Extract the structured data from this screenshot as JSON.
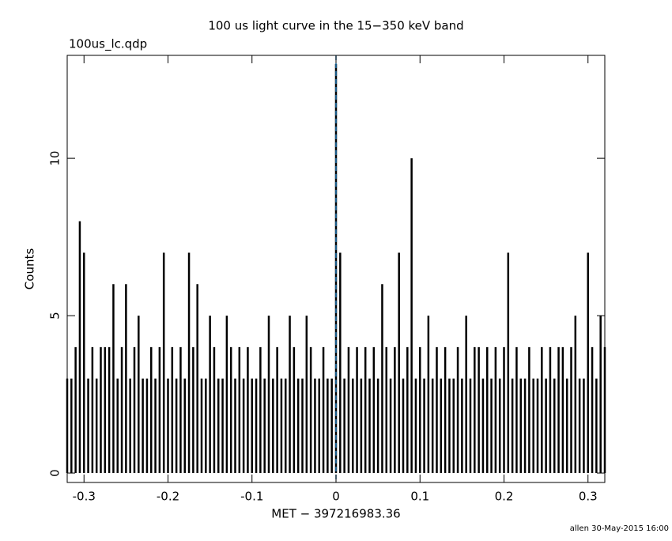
{
  "chart_data": {
    "type": "needle",
    "title": "100 us light curve in the 15−350 keV band",
    "subtitle": "100us_lc.qdp",
    "x_label": "MET − 397216983.36",
    "y_label": "Counts",
    "footer": "allen 30-May-2015 16:00",
    "color": "#000000",
    "vline": 0,
    "vline_color": "#1f77b4",
    "x": [
      -0.32,
      -0.315,
      -0.31,
      -0.305,
      -0.3,
      -0.295,
      -0.29,
      -0.285,
      -0.28,
      -0.275,
      -0.27,
      -0.265,
      -0.26,
      -0.255,
      -0.25,
      -0.245,
      -0.24,
      -0.235,
      -0.23,
      -0.225,
      -0.22,
      -0.215,
      -0.21,
      -0.205,
      -0.2,
      -0.195,
      -0.19,
      -0.185,
      -0.18,
      -0.175,
      -0.17,
      -0.165,
      -0.16,
      -0.155,
      -0.15,
      -0.145,
      -0.14,
      -0.135,
      -0.13,
      -0.125,
      -0.12,
      -0.115,
      -0.11,
      -0.105,
      -0.1,
      -0.095,
      -0.09,
      -0.085,
      -0.08,
      -0.075,
      -0.07,
      -0.065,
      -0.06,
      -0.055,
      -0.05,
      -0.045,
      -0.04,
      -0.035,
      -0.03,
      -0.025,
      -0.02,
      -0.015,
      -0.01,
      -0.005,
      0,
      0.005,
      0.01,
      0.015,
      0.02,
      0.025,
      0.03,
      0.035,
      0.04,
      0.045,
      0.05,
      0.055,
      0.06,
      0.065,
      0.07,
      0.075,
      0.08,
      0.085,
      0.09,
      0.095,
      0.1,
      0.105,
      0.11,
      0.115,
      0.12,
      0.125,
      0.13,
      0.135,
      0.14,
      0.145,
      0.15,
      0.155,
      0.16,
      0.165,
      0.17,
      0.175,
      0.18,
      0.185,
      0.19,
      0.195,
      0.2,
      0.205,
      0.21,
      0.215,
      0.22,
      0.225,
      0.23,
      0.235,
      0.24,
      0.245,
      0.25,
      0.255,
      0.26,
      0.265,
      0.27,
      0.275,
      0.28,
      0.285,
      0.29,
      0.295,
      0.3,
      0.305,
      0.31,
      0.315,
      0.32
    ],
    "values": [
      3,
      3,
      4,
      8,
      7,
      3,
      4,
      3,
      4,
      4,
      4,
      6,
      3,
      4,
      6,
      3,
      4,
      5,
      3,
      3,
      4,
      3,
      4,
      7,
      3,
      4,
      3,
      4,
      3,
      7,
      4,
      6,
      3,
      3,
      5,
      4,
      3,
      3,
      5,
      4,
      3,
      4,
      3,
      4,
      3,
      3,
      4,
      3,
      5,
      3,
      4,
      3,
      3,
      5,
      4,
      3,
      3,
      5,
      4,
      3,
      3,
      4,
      3,
      3,
      13,
      7,
      3,
      4,
      3,
      4,
      3,
      4,
      3,
      4,
      3,
      6,
      4,
      3,
      4,
      7,
      3,
      4,
      10,
      3,
      4,
      3,
      5,
      3,
      4,
      3,
      4,
      3,
      3,
      4,
      3,
      5,
      3,
      4,
      4,
      3,
      4,
      3,
      4,
      3,
      4,
      7,
      3,
      4,
      3,
      3,
      4,
      3,
      3,
      4,
      3,
      4,
      3,
      4,
      4,
      3,
      4,
      5,
      3,
      3,
      7,
      4,
      3,
      5,
      4
    ],
    "xlim": [
      -0.32,
      0.32
    ],
    "ylim": [
      -0.3,
      13.27
    ],
    "xticks": [
      -0.3,
      -0.2,
      -0.1,
      0,
      0.1,
      0.2,
      0.3
    ],
    "yticks": [
      0,
      5,
      10
    ]
  }
}
